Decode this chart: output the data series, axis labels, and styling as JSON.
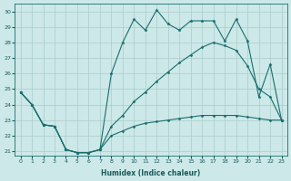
{
  "xlabel": "Humidex (Indice chaleur)",
  "background_color": "#cce8e8",
  "grid_color": "#aacccc",
  "line_color": "#1a6e6e",
  "xlim": [
    -0.5,
    23.5
  ],
  "ylim": [
    20.7,
    30.5
  ],
  "yticks": [
    21,
    22,
    23,
    24,
    25,
    26,
    27,
    28,
    29,
    30
  ],
  "xticks": [
    0,
    1,
    2,
    3,
    4,
    5,
    6,
    7,
    8,
    9,
    10,
    11,
    12,
    13,
    14,
    15,
    16,
    17,
    18,
    19,
    20,
    21,
    22,
    23
  ],
  "series1_x": [
    0,
    1,
    2,
    3,
    4,
    5,
    6,
    7,
    8,
    9,
    10,
    11,
    12,
    13,
    14,
    15,
    16,
    17,
    18,
    19,
    20,
    21,
    22,
    23
  ],
  "series1_y": [
    24.8,
    24.0,
    22.7,
    22.6,
    21.1,
    20.9,
    20.9,
    21.1,
    26.0,
    28.0,
    29.5,
    28.8,
    30.1,
    29.2,
    28.8,
    29.4,
    29.4,
    29.4,
    28.1,
    29.5,
    28.1,
    24.5,
    26.6,
    23.0
  ],
  "series2_x": [
    0,
    1,
    2,
    3,
    4,
    5,
    6,
    7,
    8,
    9,
    10,
    11,
    12,
    13,
    14,
    15,
    16,
    17,
    18,
    19,
    20,
    21,
    22,
    23
  ],
  "series2_y": [
    24.8,
    24.0,
    22.7,
    22.6,
    21.1,
    20.9,
    20.9,
    21.1,
    22.6,
    23.3,
    24.2,
    24.8,
    25.5,
    26.1,
    26.7,
    27.2,
    27.7,
    28.0,
    27.8,
    27.5,
    26.5,
    25.0,
    24.5,
    23.0
  ],
  "series3_x": [
    0,
    1,
    2,
    3,
    4,
    5,
    6,
    7,
    8,
    9,
    10,
    11,
    12,
    13,
    14,
    15,
    16,
    17,
    18,
    19,
    20,
    21,
    22,
    23
  ],
  "series3_y": [
    24.8,
    24.0,
    22.7,
    22.6,
    21.1,
    20.9,
    20.9,
    21.1,
    22.0,
    22.3,
    22.6,
    22.8,
    22.9,
    23.0,
    23.1,
    23.2,
    23.3,
    23.3,
    23.3,
    23.3,
    23.2,
    23.1,
    23.0,
    23.0
  ]
}
